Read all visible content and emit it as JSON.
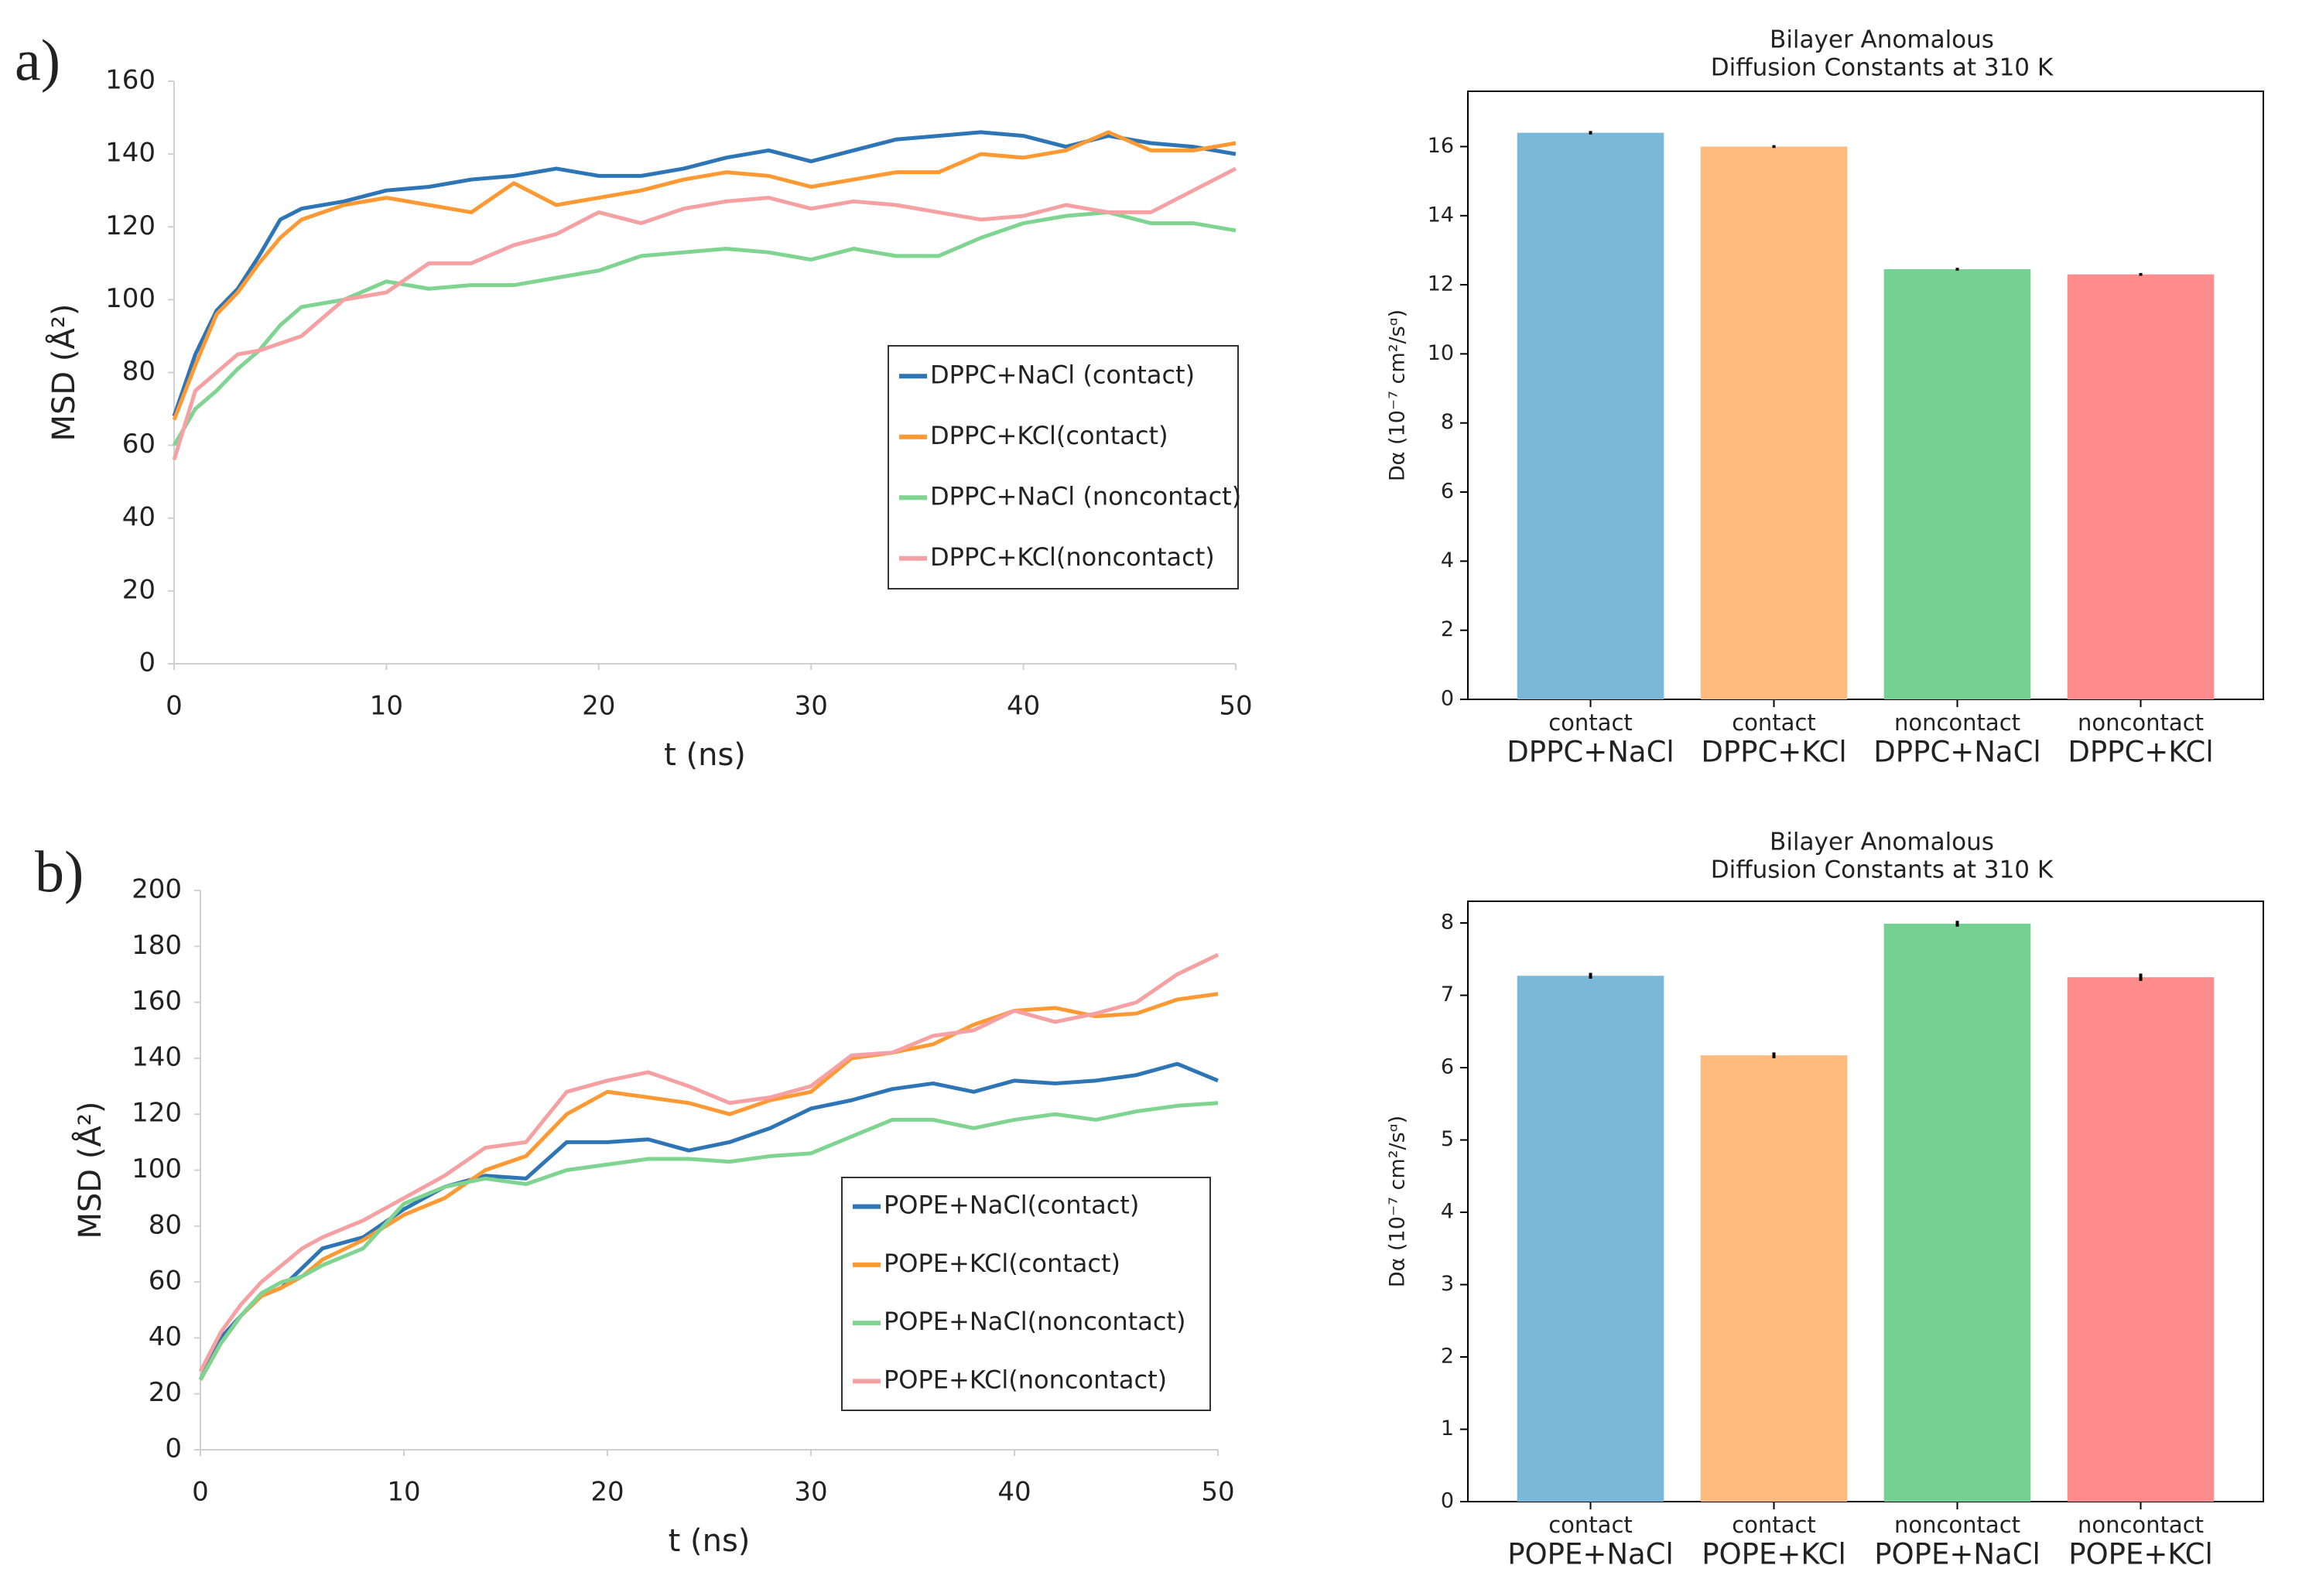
{
  "chart_data": [
    {
      "type": "line",
      "label": "a)",
      "xlabel": "t (ns)",
      "ylabel": "MSD (Å²)",
      "x": [
        0,
        1,
        2,
        3,
        4,
        5,
        6,
        8,
        10,
        12,
        14,
        16,
        18,
        20,
        22,
        24,
        26,
        28,
        30,
        32,
        34,
        36,
        38,
        40,
        42,
        44,
        46,
        48,
        50
      ],
      "xlim": [
        0,
        50
      ],
      "xticks": [
        0,
        10,
        20,
        30,
        40,
        50
      ],
      "ylim": [
        0,
        160
      ],
      "yticks": [
        0,
        20,
        40,
        60,
        80,
        100,
        120,
        140,
        160
      ],
      "series": [
        {
          "name": "DPPC+NaCl (contact)",
          "color": "#2e75b6",
          "values": [
            68,
            85,
            97,
            103,
            112,
            122,
            125,
            127,
            130,
            131,
            133,
            134,
            136,
            134,
            134,
            136,
            139,
            141,
            138,
            141,
            144,
            145,
            146,
            145,
            142,
            145,
            143,
            142,
            140
          ]
        },
        {
          "name": "DPPC+KCl(contact)",
          "color": "#ff9933",
          "values": [
            67,
            82,
            96,
            102,
            110,
            117,
            122,
            126,
            128,
            126,
            124,
            132,
            126,
            128,
            130,
            133,
            135,
            134,
            131,
            133,
            135,
            135,
            140,
            139,
            141,
            146,
            141,
            141,
            143
          ]
        },
        {
          "name": "DPPC+NaCl (noncontact)",
          "color": "#7fd491",
          "values": [
            60,
            70,
            75,
            81,
            86,
            93,
            98,
            100,
            105,
            103,
            104,
            104,
            106,
            108,
            112,
            113,
            114,
            113,
            111,
            114,
            112,
            112,
            117,
            121,
            123,
            124,
            121,
            121,
            119
          ]
        },
        {
          "name": "DPPC+KCl(noncontact)",
          "color": "#f5a0a3",
          "values": [
            56,
            75,
            80,
            85,
            86,
            88,
            90,
            100,
            102,
            110,
            110,
            115,
            118,
            124,
            121,
            125,
            127,
            128,
            125,
            127,
            126,
            124,
            122,
            123,
            126,
            124,
            124,
            130,
            136
          ]
        }
      ]
    },
    {
      "type": "bar",
      "title": [
        "Bilayer Anomalous",
        "Diffusion Constants at 310 K"
      ],
      "ylabel": "Dα (10⁻⁷ cm²/sᵅ)",
      "categories": [
        [
          "contact",
          "DPPC+NaCl"
        ],
        [
          "contact",
          "DPPC+KCl"
        ],
        [
          "noncontact",
          "DPPC+NaCl"
        ],
        [
          "noncontact",
          "DPPC+KCl"
        ]
      ],
      "values": [
        16.4,
        16.0,
        12.45,
        12.3
      ],
      "errors": [
        0.05,
        0.04,
        0.04,
        0.04
      ],
      "colors": [
        "#7ab8d9",
        "#fdbb7d",
        "#75d193",
        "#ff8c8c"
      ],
      "ylim": [
        0,
        17.6
      ],
      "yticks": [
        0,
        2,
        4,
        6,
        8,
        10,
        12,
        14,
        16
      ]
    },
    {
      "type": "line",
      "label": "b)",
      "xlabel": "t (ns)",
      "ylabel": "MSD (Å²)",
      "x": [
        0,
        1,
        2,
        3,
        4,
        5,
        6,
        8,
        10,
        12,
        14,
        16,
        18,
        20,
        22,
        24,
        26,
        28,
        30,
        32,
        34,
        36,
        38,
        40,
        42,
        44,
        46,
        48,
        50
      ],
      "xlim": [
        0,
        50
      ],
      "xticks": [
        0,
        10,
        20,
        30,
        40,
        50
      ],
      "ylim": [
        0,
        200
      ],
      "yticks": [
        0,
        20,
        40,
        60,
        80,
        100,
        120,
        140,
        160,
        180,
        200
      ],
      "series": [
        {
          "name": "POPE+NaCl(contact)",
          "color": "#2e75b6",
          "values": [
            25,
            40,
            48,
            55,
            58,
            65,
            72,
            76,
            86,
            94,
            98,
            97,
            110,
            110,
            111,
            107,
            110,
            115,
            122,
            125,
            129,
            131,
            128,
            132,
            131,
            132,
            134,
            138,
            132
          ]
        },
        {
          "name": "POPE+KCl(contact)",
          "color": "#ff9933",
          "values": [
            25,
            38,
            48,
            55,
            58,
            62,
            68,
            75,
            84,
            90,
            100,
            105,
            120,
            128,
            126,
            124,
            120,
            125,
            128,
            140,
            142,
            145,
            152,
            157,
            158,
            155,
            156,
            161,
            163
          ]
        },
        {
          "name": "POPE+NaCl(noncontact)",
          "color": "#7fd491",
          "values": [
            25,
            38,
            48,
            56,
            60,
            62,
            66,
            72,
            88,
            94,
            97,
            95,
            100,
            102,
            104,
            104,
            103,
            105,
            106,
            112,
            118,
            118,
            115,
            118,
            120,
            118,
            121,
            123,
            124
          ]
        },
        {
          "name": "POPE+KCl(noncontact)",
          "color": "#f5a0a3",
          "values": [
            28,
            42,
            52,
            60,
            66,
            72,
            76,
            82,
            90,
            98,
            108,
            110,
            128,
            132,
            135,
            130,
            124,
            126,
            130,
            141,
            142,
            148,
            150,
            157,
            153,
            156,
            160,
            170,
            177
          ]
        }
      ]
    },
    {
      "type": "bar",
      "title": [
        "Bilayer Anomalous",
        "Diffusion Constants at 310 K"
      ],
      "ylabel": "Dα (10⁻⁷ cm²/sᵅ)",
      "categories": [
        [
          "contact",
          "POPE+NaCl"
        ],
        [
          "contact",
          "POPE+KCl"
        ],
        [
          "noncontact",
          "POPE+NaCl"
        ],
        [
          "noncontact",
          "POPE+KCl"
        ]
      ],
      "values": [
        7.27,
        6.17,
        7.99,
        7.25
      ],
      "errors": [
        0.04,
        0.04,
        0.04,
        0.05
      ],
      "colors": [
        "#7ab8d9",
        "#fdbb7d",
        "#75d193",
        "#ff8c8c"
      ],
      "ylim": [
        0,
        8.3
      ],
      "yticks": [
        0,
        1,
        2,
        3,
        4,
        5,
        6,
        7,
        8
      ]
    }
  ]
}
